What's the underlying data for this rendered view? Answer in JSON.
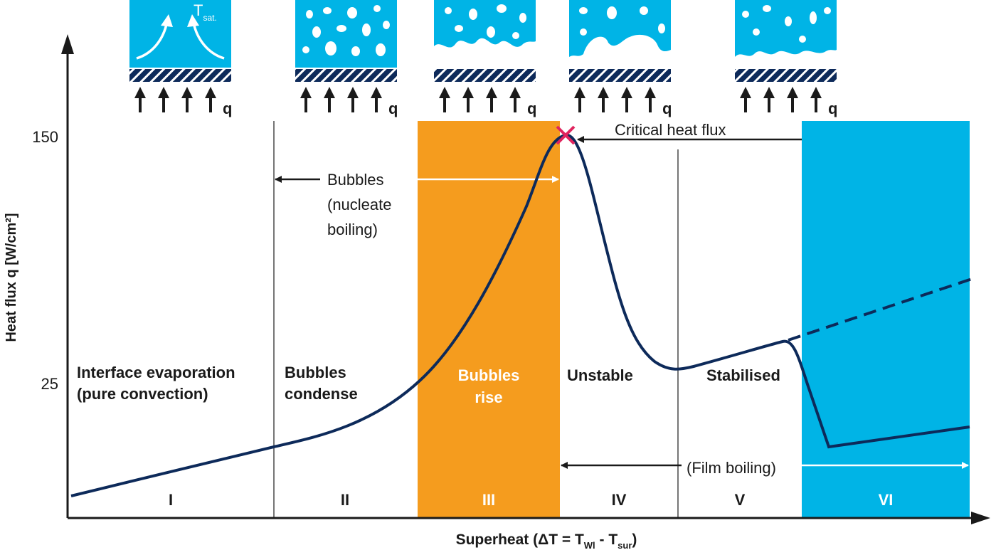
{
  "y_axis": {
    "label": "Heat flux q [W/cm²]",
    "ticks": [
      "150",
      "25"
    ]
  },
  "x_axis": {
    "label_parts": [
      "Superheat (ΔT = T",
      "Wl",
      " - T",
      "sur",
      ")"
    ]
  },
  "icons": [
    {
      "q": "q",
      "t": "T",
      "t_sub": "sat."
    },
    {
      "q": "q"
    },
    {
      "q": "q"
    },
    {
      "q": "q"
    },
    {
      "q": "q"
    }
  ],
  "regions": [
    {
      "numeral": "I",
      "lines": [
        "Interface evaporation",
        "(pure convection)"
      ]
    },
    {
      "numeral": "II",
      "lines": [
        "Bubbles",
        "condense"
      ]
    },
    {
      "numeral": "III",
      "lines": [
        "Bubbles",
        "rise"
      ]
    },
    {
      "numeral": "IV",
      "lines": [
        "Unstable"
      ]
    },
    {
      "numeral": "V",
      "lines": [
        "Stabilised"
      ]
    },
    {
      "numeral": "VI"
    }
  ],
  "annotations": {
    "nucleate": [
      "Bubbles",
      "(nucleate",
      "boiling)"
    ],
    "critical": "Critical heat flux",
    "film": "(Film boiling)"
  }
}
